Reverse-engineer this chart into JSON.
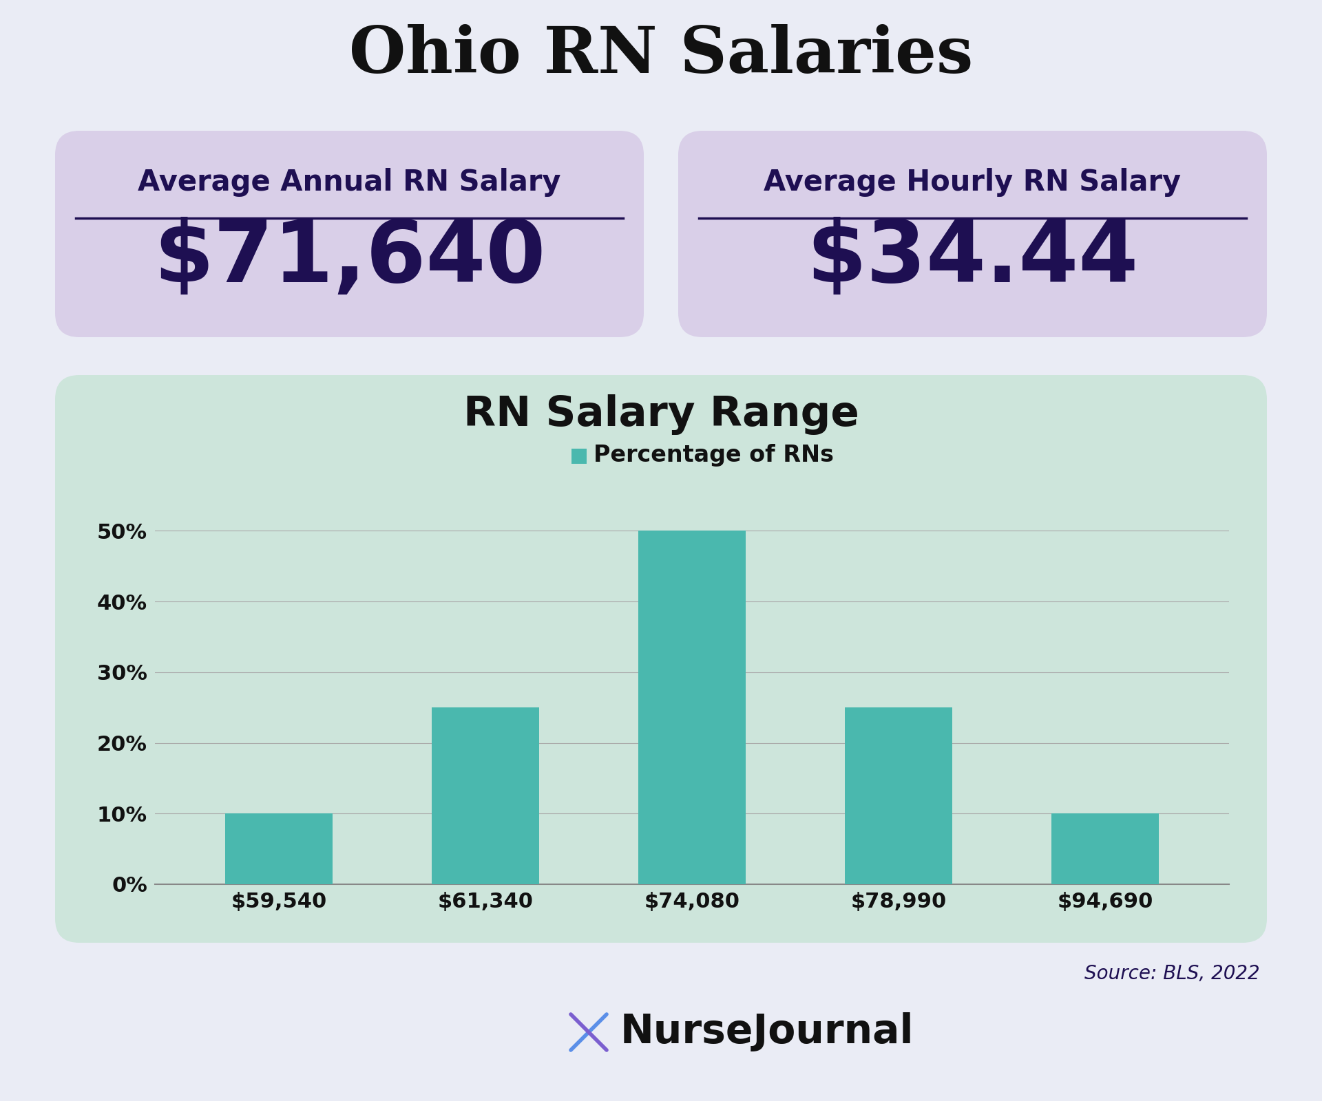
{
  "title": "Ohio RN Salaries",
  "title_fontsize": 68,
  "bg_color": "#eaecf5",
  "card_color": "#d9cfe8",
  "chart_bg_color": "#cde5db",
  "bar_color": "#4ab8ae",
  "text_color_dark": "#1e0f52",
  "text_color_black": "#111111",
  "annual_label": "Average Annual RN Salary",
  "annual_value": "$71,640",
  "hourly_label": "Average Hourly RN Salary",
  "hourly_value": "$34.44",
  "chart_title": "RN Salary Range",
  "legend_label": "Percentage of RNs",
  "categories": [
    "$59,540",
    "$61,340",
    "$74,080",
    "$78,990",
    "$94,690"
  ],
  "values": [
    10,
    25,
    50,
    25,
    10
  ],
  "ylim": [
    0,
    55
  ],
  "yticks": [
    0,
    10,
    20,
    30,
    40,
    50
  ],
  "ytick_labels": [
    "0%",
    "10%",
    "20%",
    "30%",
    "40%",
    "50%"
  ],
  "source_text": "Source: BLS, 2022",
  "nursejournal_text": "NurseJournal"
}
